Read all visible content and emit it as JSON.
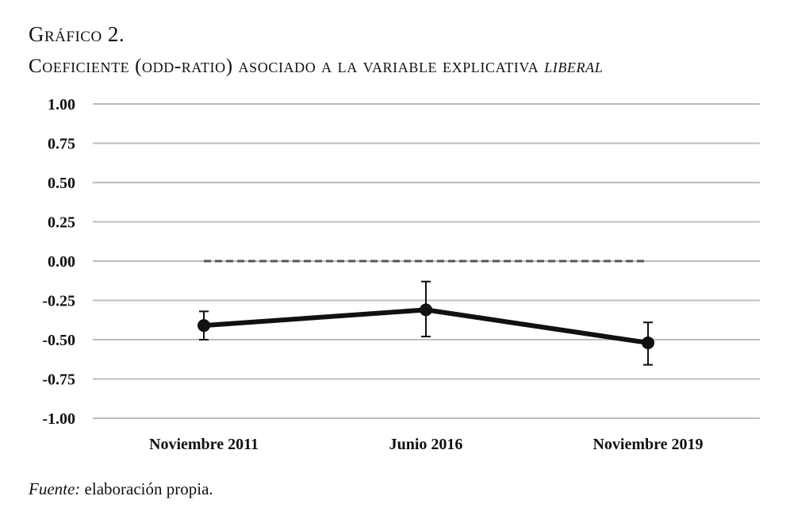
{
  "caption": {
    "number": "Gráfico 2.",
    "title_prefix": "Coeficiente (odd-ratio) asociado a la variable explicativa ",
    "title_variable": "liberal"
  },
  "source": {
    "label": "Fuente:",
    "text": " elaboración propia."
  },
  "chart_data": {
    "type": "line",
    "categories": [
      "Noviembre 2011",
      "Junio 2016",
      "Noviembre 2019"
    ],
    "series": [
      {
        "values": [
          -0.41,
          -0.31,
          -0.52
        ],
        "error_low": [
          -0.5,
          -0.48,
          -0.66
        ],
        "error_high": [
          -0.32,
          -0.13,
          -0.39
        ],
        "color": "#111111"
      }
    ],
    "reference_line": {
      "value": 0.0,
      "style": "dashed",
      "color": "#555555"
    },
    "yticks": [
      "1.00",
      "0.75",
      "0.50",
      "0.25",
      "0.00",
      "-0.25",
      "-0.50",
      "-0.75",
      "-1.00"
    ],
    "ylim": [
      -1.0,
      1.0
    ],
    "grid": true,
    "legend": false,
    "xlabel": "",
    "ylabel": "",
    "gridline_color": "#bdbdbd"
  }
}
